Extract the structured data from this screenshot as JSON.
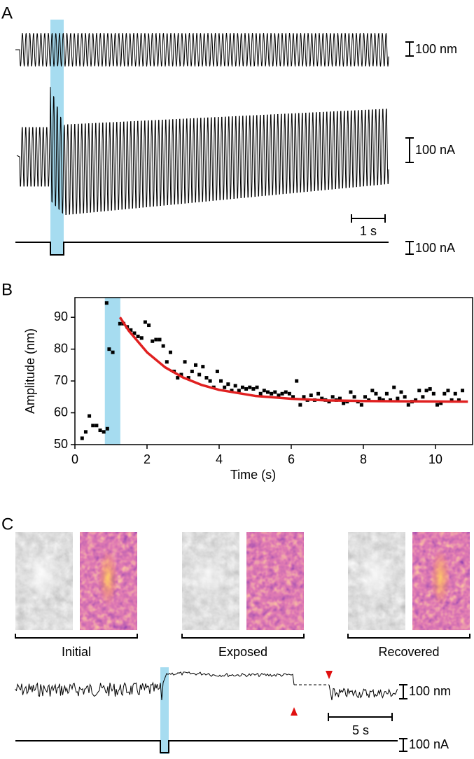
{
  "panel_a": {
    "label": "A",
    "scale_labels": [
      "100 nm",
      "100 nA",
      "1 s",
      "100 nA"
    ]
  },
  "panel_b": {
    "label": "B"
  },
  "chart_data": {
    "type": "scatter",
    "x_label": "Time (s)",
    "y_label": "Amplitude (nm)",
    "xlim": [
      0,
      11.05
    ],
    "ylim": [
      50,
      96.2
    ],
    "xticks": [
      0,
      2,
      4,
      6,
      8,
      10
    ],
    "yticks": [
      50,
      60,
      70,
      80,
      90
    ],
    "highlight": [
      0.83,
      1.26
    ],
    "highlight_color": "#a6dcf0",
    "color": "#000000",
    "x": [
      0.2,
      0.3,
      0.4,
      0.5,
      0.6,
      0.7,
      0.8,
      0.88,
      0.9,
      0.95,
      1.05,
      1.25,
      1.35,
      1.45,
      1.55,
      1.65,
      1.75,
      1.85,
      1.95,
      2.05,
      2.15,
      2.25,
      2.35,
      2.45,
      2.55,
      2.65,
      2.75,
      2.85,
      2.95,
      3.05,
      3.15,
      3.25,
      3.35,
      3.45,
      3.55,
      3.65,
      3.75,
      3.85,
      3.95,
      4.05,
      4.15,
      4.25,
      4.35,
      4.45,
      4.55,
      4.65,
      4.75,
      4.85,
      4.95,
      5.05,
      5.15,
      5.25,
      5.35,
      5.45,
      5.55,
      5.65,
      5.75,
      5.85,
      5.95,
      6.05,
      6.15,
      6.25,
      6.35,
      6.45,
      6.55,
      6.65,
      6.75,
      6.85,
      6.95,
      7.05,
      7.15,
      7.25,
      7.35,
      7.45,
      7.55,
      7.65,
      7.75,
      7.85,
      7.95,
      8.05,
      8.15,
      8.25,
      8.35,
      8.45,
      8.55,
      8.65,
      8.75,
      8.85,
      8.95,
      9.05,
      9.15,
      9.25,
      9.35,
      9.45,
      9.55,
      9.65,
      9.75,
      9.85,
      9.95,
      10.05,
      10.15,
      10.25,
      10.35,
      10.45,
      10.55,
      10.65,
      10.75
    ],
    "values": [
      52,
      54,
      59,
      56,
      56,
      54.5,
      54,
      94.5,
      55,
      80,
      79,
      88,
      88,
      87,
      86,
      85,
      84,
      83.5,
      88.5,
      87.5,
      82.5,
      83,
      83,
      81,
      76,
      79,
      73,
      71,
      72,
      76,
      71,
      73,
      75,
      72,
      74.5,
      71,
      70,
      68,
      73,
      70,
      68,
      69,
      67,
      68.5,
      67,
      68,
      67.5,
      68,
      67.5,
      68,
      66,
      67,
      66.5,
      66,
      66.5,
      65.5,
      66,
      66.5,
      66,
      65,
      70,
      62.5,
      65,
      64,
      65.5,
      64,
      66,
      64.5,
      64,
      63.5,
      65,
      64,
      64.5,
      63,
      63.5,
      66.5,
      65,
      63.5,
      62.5,
      65,
      64,
      67,
      66,
      64.5,
      64,
      66,
      64,
      68,
      64.5,
      66.5,
      65,
      62.5,
      63.5,
      64,
      67,
      65,
      67,
      67.5,
      66,
      62.5,
      63,
      66,
      67,
      64,
      66,
      64,
      67
    ],
    "fit": {
      "color": "#e02020",
      "x": [
        1.25,
        1.5,
        2,
        2.5,
        3,
        3.5,
        4,
        5,
        6,
        7,
        8,
        9,
        10,
        10.9
      ],
      "values": [
        90,
        85.7,
        79,
        74.3,
        71.1,
        68.8,
        67.2,
        65.3,
        64.4,
        63.9,
        63.7,
        63.6,
        63.55,
        63.5
      ]
    }
  },
  "panel_c": {
    "label": "C",
    "images": [
      "Initial",
      "Exposed",
      "Recovered"
    ],
    "scale_labels": [
      "100 nm",
      "5 s",
      "100 nA"
    ]
  }
}
